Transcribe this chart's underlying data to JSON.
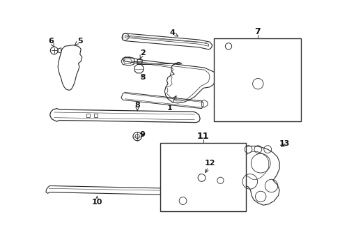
{
  "background_color": "#ffffff",
  "line_color": "#2a2a2a",
  "label_color": "#111111",
  "fig_w": 4.89,
  "fig_h": 3.6,
  "dpi": 100
}
